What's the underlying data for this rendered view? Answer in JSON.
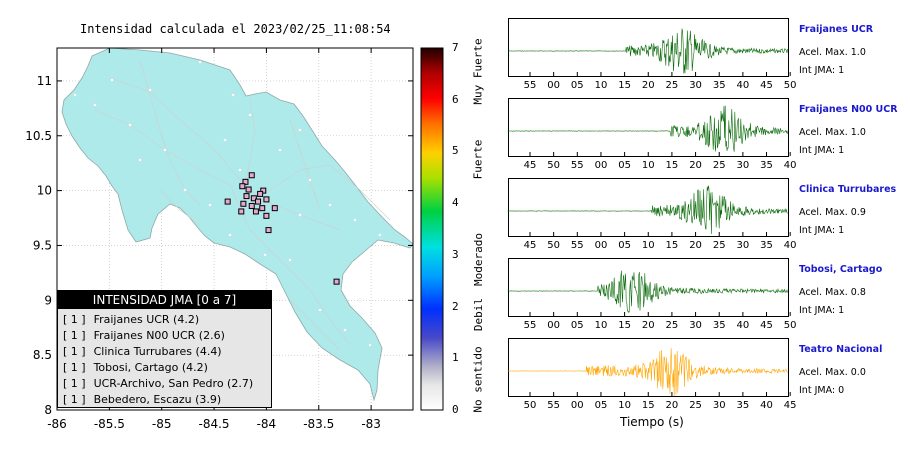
{
  "map": {
    "title": "Intensidad calculada el 2023/02/25_11:08:54",
    "x_ticks": [
      "-86",
      "-85.5",
      "-85",
      "-84.5",
      "-84",
      "-83.5",
      "-83"
    ],
    "y_ticks": [
      "11",
      "10.5",
      "10",
      "9.5",
      "9",
      "8.5",
      "8"
    ]
  },
  "colorbar": {
    "ticks": [
      "7",
      "6",
      "5",
      "4",
      "3",
      "2",
      "1",
      "0"
    ],
    "categories": [
      "Muy Fuerte",
      "Fuerte",
      "Moderado",
      "Debil",
      "No sentido"
    ]
  },
  "legend": {
    "title": "INTENSIDAD JMA [0 a 7]",
    "items": [
      {
        "level": "[ 1 ]",
        "name": "Fraijanes UCR (4.2)"
      },
      {
        "level": "[ 1 ]",
        "name": "Fraijanes N00 UCR (2.6)"
      },
      {
        "level": "[ 1 ]",
        "name": "Clinica Turrubares (4.4)"
      },
      {
        "level": "[ 1 ]",
        "name": "Tobosi, Cartago (4.2)"
      },
      {
        "level": "[ 1 ]",
        "name": "UCR-Archivo, San Pedro (2.7)"
      },
      {
        "level": "[ 1 ]",
        "name": "Bebedero, Escazu (3.9)"
      }
    ]
  },
  "waveforms": [
    {
      "name": "Fraijanes UCR",
      "accel": "Acel. Max. 1.0",
      "jma": "Int JMA: 1",
      "color": "#0a6b0a",
      "ticks": [
        "55",
        "00",
        "05",
        "10",
        "15",
        "20",
        "25",
        "30",
        "35",
        "40",
        "45",
        "50"
      ],
      "tick_start": 4,
      "onset": 0.42,
      "peak": 0.62
    },
    {
      "name": "Fraijanes N00 UCR",
      "accel": "Acel. Max. 1.0",
      "jma": "Int JMA: 1",
      "color": "#0a6b0a",
      "ticks": [
        "45",
        "50",
        "55",
        "00",
        "05",
        "10",
        "15",
        "20",
        "25",
        "30",
        "35",
        "40"
      ],
      "tick_start": 4,
      "onset": 0.58,
      "peak": 0.77
    },
    {
      "name": "Clinica Turrubares",
      "accel": "Acel. Max. 0.9",
      "jma": "Int JMA: 1",
      "color": "#0a6b0a",
      "ticks": [
        "45",
        "50",
        "55",
        "00",
        "05",
        "10",
        "15",
        "20",
        "25",
        "30",
        "35",
        "40"
      ],
      "tick_start": 4,
      "onset": 0.51,
      "peak": 0.71
    },
    {
      "name": "Tobosi, Cartago",
      "accel": "Acel. Max. 0.8",
      "jma": "Int JMA: 1",
      "color": "#0a6b0a",
      "ticks": [
        "55",
        "00",
        "05",
        "10",
        "15",
        "20",
        "25",
        "30",
        "35",
        "40",
        "45",
        "50"
      ],
      "tick_start": 4,
      "onset": 0.32,
      "peak": 0.44
    },
    {
      "name": "Teatro Nacional",
      "accel": "Acel. Max. 0.0",
      "jma": "Int JMA: 0",
      "color": "#ffa500",
      "ticks": [
        "50",
        "55",
        "00",
        "05",
        "10",
        "15",
        "20",
        "25",
        "30",
        "35",
        "40",
        "45"
      ],
      "tick_start": 4,
      "onset": 0.28,
      "peak": 0.58
    }
  ],
  "waveform_xlabel": "Tiempo (s)",
  "chart_data": {
    "type": "scatter",
    "title": "Intensidad calculada el 2023/02/25_11:08:54",
    "xlim": [
      -86,
      -82.6
    ],
    "ylim": [
      8,
      11.3
    ],
    "stations": [
      {
        "lon": -84.14,
        "lat": 10.14
      },
      {
        "lon": -84.2,
        "lat": 10.08
      },
      {
        "lon": -84.23,
        "lat": 10.04
      },
      {
        "lon": -84.17,
        "lat": 10.01
      },
      {
        "lon": -84.03,
        "lat": 10.0
      },
      {
        "lon": -84.06,
        "lat": 9.97
      },
      {
        "lon": -84.19,
        "lat": 9.95
      },
      {
        "lon": -84.12,
        "lat": 9.93
      },
      {
        "lon": -84.08,
        "lat": 9.9
      },
      {
        "lon": -84.0,
        "lat": 9.92
      },
      {
        "lon": -84.37,
        "lat": 9.9
      },
      {
        "lon": -84.22,
        "lat": 9.88
      },
      {
        "lon": -84.14,
        "lat": 9.86
      },
      {
        "lon": -84.04,
        "lat": 9.84
      },
      {
        "lon": -83.92,
        "lat": 9.84
      },
      {
        "lon": -84.24,
        "lat": 9.81
      },
      {
        "lon": -84.1,
        "lat": 9.81
      },
      {
        "lon": -84.0,
        "lat": 9.77
      },
      {
        "lon": -83.98,
        "lat": 9.64
      },
      {
        "lon": -83.33,
        "lat": 9.17
      }
    ]
  }
}
